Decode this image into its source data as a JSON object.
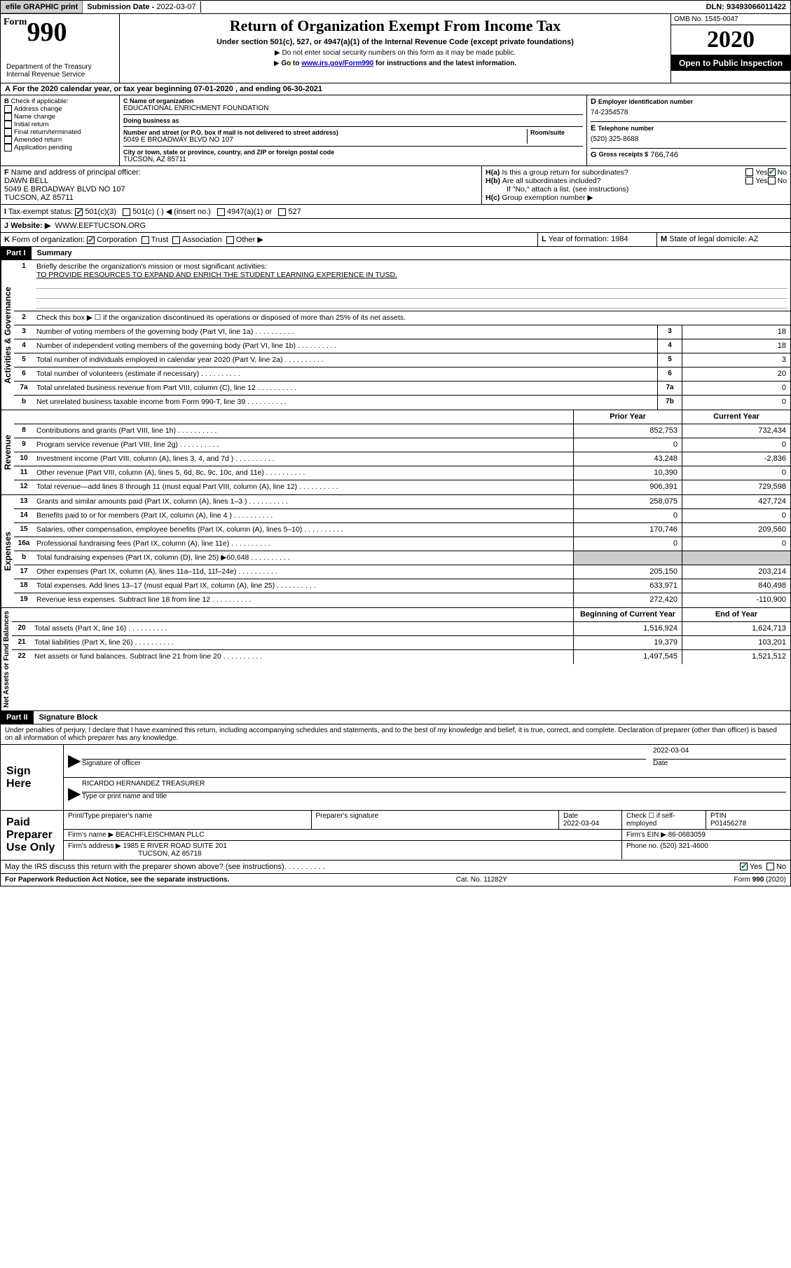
{
  "top": {
    "efile": "efile GRAPHIC print",
    "sub_date_label": "Submission Date - ",
    "sub_date": "2022-03-07",
    "dln_label": "DLN: ",
    "dln": "93493066011422"
  },
  "header": {
    "form_prefix": "Form",
    "form_num": "990",
    "dept": "Department of the Treasury\nInternal Revenue Service",
    "title": "Return of Organization Exempt From Income Tax",
    "subtitle": "Under section 501(c), 527, or 4947(a)(1) of the Internal Revenue Code (except private foundations)",
    "note1": "Do not enter social security numbers on this form as it may be made public.",
    "note2_pre": "Go to ",
    "note2_link": "www.irs.gov/Form990",
    "note2_post": " for instructions and the latest information.",
    "omb": "OMB No. 1545-0047",
    "year": "2020",
    "inspect": "Open to Public Inspection"
  },
  "period": {
    "text": "For the 2020 calendar year, or tax year beginning 07-01-2020    , and ending 06-30-2021"
  },
  "b": {
    "label": "Check if applicable:",
    "items": [
      "Address change",
      "Name change",
      "Initial return",
      "Final return/terminated",
      "Amended return",
      "Application pending"
    ]
  },
  "c": {
    "name_label": "Name of organization",
    "name": "EDUCATIONAL ENRICHMENT FOUNDATION",
    "dba_label": "Doing business as",
    "dba": "",
    "addr_label": "Number and street (or P.O. box if mail is not delivered to street address)",
    "room_label": "Room/suite",
    "addr": "5049 E BROADWAY BLVD NO 107",
    "city_label": "City or town, state or province, country, and ZIP or foreign postal code",
    "city": "TUCSON, AZ  85711"
  },
  "d": {
    "label": "Employer identification number",
    "val": "74-2354578"
  },
  "e": {
    "label": "Telephone number",
    "val": "(520) 325-8688"
  },
  "g": {
    "label": "Gross receipts $",
    "val": "766,746"
  },
  "f": {
    "label": "Name and address of principal officer:",
    "name": "DAWN BELL",
    "addr1": "5049 E BROADWAY BLVD NO 107",
    "addr2": "TUCSON, AZ  85711"
  },
  "h": {
    "a": "Is this a group return for subordinates?",
    "b": "Are all subordinates included?",
    "b_note": "If \"No,\" attach a list. (see instructions)",
    "c": "Group exemption number ▶"
  },
  "i": {
    "label": "Tax-exempt status:",
    "opts": [
      "501(c)(3)",
      "501(c) (  ) ◀ (insert no.)",
      "4947(a)(1) or",
      "527"
    ]
  },
  "j": {
    "label": "Website: ▶",
    "val": "WWW.EEFTUCSON.ORG"
  },
  "k": {
    "label": "Form of organization:",
    "opts": [
      "Corporation",
      "Trust",
      "Association",
      "Other ▶"
    ]
  },
  "l": {
    "label": "Year of formation:",
    "val": "1984"
  },
  "m": {
    "label": "State of legal domicile:",
    "val": "AZ"
  },
  "part1": {
    "header": "Part I",
    "title": "Summary",
    "l1_label": "Briefly describe the organization's mission or most significant activities:",
    "l1_val": "TO PROVIDE RESOURCES TO EXPAND AND ENRICH THE STUDENT LEARNING EXPERIENCE IN TUSD.",
    "l2": "Check this box ▶ ☐  if the organization discontinued its operations or disposed of more than 25% of its net assets.",
    "gov_lines": [
      {
        "n": "3",
        "t": "Number of voting members of the governing body (Part VI, line 1a)",
        "box": "3",
        "v": "18"
      },
      {
        "n": "4",
        "t": "Number of independent voting members of the governing body (Part VI, line 1b)",
        "box": "4",
        "v": "18"
      },
      {
        "n": "5",
        "t": "Total number of individuals employed in calendar year 2020 (Part V, line 2a)",
        "box": "5",
        "v": "3"
      },
      {
        "n": "6",
        "t": "Total number of volunteers (estimate if necessary)",
        "box": "6",
        "v": "20"
      },
      {
        "n": "7a",
        "t": "Total unrelated business revenue from Part VIII, column (C), line 12",
        "box": "7a",
        "v": "0"
      },
      {
        "n": "b",
        "t": "Net unrelated business taxable income from Form 990-T, line 39",
        "box": "7b",
        "v": "0"
      }
    ],
    "col_prior": "Prior Year",
    "col_current": "Current Year",
    "rev_lines": [
      {
        "n": "8",
        "t": "Contributions and grants (Part VIII, line 1h)",
        "p": "852,753",
        "c": "732,434"
      },
      {
        "n": "9",
        "t": "Program service revenue (Part VIII, line 2g)",
        "p": "0",
        "c": "0"
      },
      {
        "n": "10",
        "t": "Investment income (Part VIII, column (A), lines 3, 4, and 7d )",
        "p": "43,248",
        "c": "-2,836"
      },
      {
        "n": "11",
        "t": "Other revenue (Part VIII, column (A), lines 5, 6d, 8c, 9c, 10c, and 11e)",
        "p": "10,390",
        "c": "0"
      },
      {
        "n": "12",
        "t": "Total revenue—add lines 8 through 11 (must equal Part VIII, column (A), line 12)",
        "p": "906,391",
        "c": "729,598"
      }
    ],
    "exp_lines": [
      {
        "n": "13",
        "t": "Grants and similar amounts paid (Part IX, column (A), lines 1–3 )",
        "p": "258,075",
        "c": "427,724"
      },
      {
        "n": "14",
        "t": "Benefits paid to or for members (Part IX, column (A), line 4 )",
        "p": "0",
        "c": "0"
      },
      {
        "n": "15",
        "t": "Salaries, other compensation, employee benefits (Part IX, column (A), lines 5–10)",
        "p": "170,746",
        "c": "209,560"
      },
      {
        "n": "16a",
        "t": "Professional fundraising fees (Part IX, column (A), line 11e)",
        "p": "0",
        "c": "0"
      },
      {
        "n": "b",
        "t": "Total fundraising expenses (Part IX, column (D), line 25) ▶60,648",
        "p": "shaded",
        "c": "shaded"
      },
      {
        "n": "17",
        "t": "Other expenses (Part IX, column (A), lines 11a–11d, 11f–24e)",
        "p": "205,150",
        "c": "203,214"
      },
      {
        "n": "18",
        "t": "Total expenses. Add lines 13–17 (must equal Part IX, column (A), line 25)",
        "p": "633,971",
        "c": "840,498"
      },
      {
        "n": "19",
        "t": "Revenue less expenses. Subtract line 18 from line 12",
        "p": "272,420",
        "c": "-110,900"
      }
    ],
    "col_begin": "Beginning of Current Year",
    "col_end": "End of Year",
    "net_lines": [
      {
        "n": "20",
        "t": "Total assets (Part X, line 16)",
        "p": "1,516,924",
        "c": "1,624,713"
      },
      {
        "n": "21",
        "t": "Total liabilities (Part X, line 26)",
        "p": "19,379",
        "c": "103,201"
      },
      {
        "n": "22",
        "t": "Net assets or fund balances. Subtract line 21 from line 20",
        "p": "1,497,545",
        "c": "1,521,512"
      }
    ],
    "side_gov": "Activities & Governance",
    "side_rev": "Revenue",
    "side_exp": "Expenses",
    "side_net": "Net Assets or Fund Balances"
  },
  "part2": {
    "header": "Part II",
    "title": "Signature Block",
    "decl": "Under penalties of perjury, I declare that I have examined this return, including accompanying schedules and statements, and to the best of my knowledge and belief, it is true, correct, and complete. Declaration of preparer (other than officer) is based on all information of which preparer has any knowledge."
  },
  "sign": {
    "left": "Sign Here",
    "sig_officer": "Signature of officer",
    "date_label": "Date",
    "date": "2022-03-04",
    "name": "RICARDO HERNANDEZ  TREASURER",
    "name_label": "Type or print name and title"
  },
  "prep": {
    "left": "Paid Preparer Use Only",
    "print_label": "Print/Type preparer's name",
    "sig_label": "Preparer's signature",
    "date_label": "Date",
    "date": "2022-03-04",
    "check_label": "Check ☐ if self-employed",
    "ptin_label": "PTIN",
    "ptin": "P01456278",
    "firm_label": "Firm's name      ▶",
    "firm": "BEACHFLEISCHMAN PLLC",
    "ein_label": "Firm's EIN ▶",
    "ein": "86-0683059",
    "addr_label": "Firm's address  ▶",
    "addr1": "1985 E RIVER ROAD SUITE 201",
    "addr2": "TUCSON, AZ  85718",
    "phone_label": "Phone no.",
    "phone": "(520) 321-4600"
  },
  "discuss": "May the IRS discuss this return with the preparer shown above? (see instructions)",
  "footer": {
    "left": "For Paperwork Reduction Act Notice, see the separate instructions.",
    "mid": "Cat. No. 11282Y",
    "right": "Form 990 (2020)"
  }
}
